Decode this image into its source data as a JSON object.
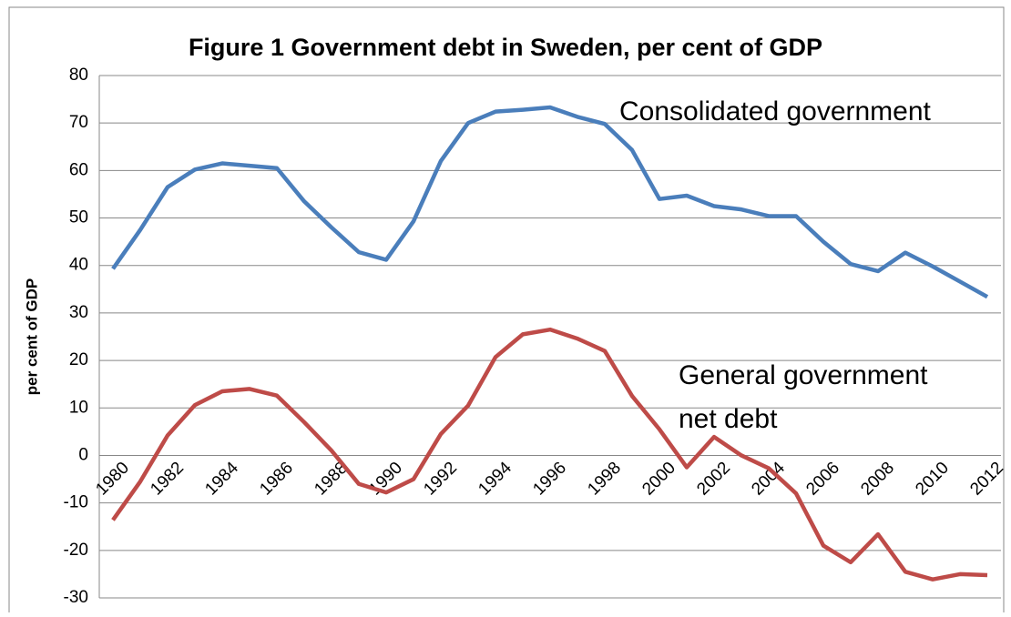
{
  "chart_data": {
    "type": "line",
    "title": "Figure 1 Government debt in Sweden, per cent of GDP",
    "y_label": "per cent of GDP",
    "annotations": [
      "Consolidated government",
      "General government",
      "net debt"
    ],
    "categories": [
      "1980",
      null,
      "1982",
      null,
      "1984",
      null,
      "1986",
      null,
      "1988",
      null,
      "1990",
      null,
      "1992",
      null,
      "1994",
      null,
      "1996",
      null,
      "1998",
      null,
      "2000",
      null,
      "2002",
      null,
      "2004",
      null,
      "2006",
      null,
      "2008",
      null,
      "2010",
      null,
      "2012"
    ],
    "series": [
      {
        "color": "#4a7ebb",
        "values": [
          39.3,
          47.5,
          56.5,
          60.2,
          61.5,
          61.0,
          60.5,
          53.5,
          48.0,
          42.8,
          41.2,
          49.3,
          62.0,
          70.0,
          72.4,
          72.8,
          73.3,
          71.3,
          69.8,
          64.3,
          54.0,
          54.7,
          52.5,
          51.8,
          50.4,
          50.4,
          45.0,
          40.3,
          38.8,
          42.7,
          39.8,
          36.6,
          33.4
        ]
      },
      {
        "color": "#be4b48",
        "values": [
          -13.6,
          -5.5,
          4.2,
          10.6,
          13.5,
          14.0,
          12.6,
          7.0,
          1.0,
          -6.0,
          -7.8,
          -5.0,
          4.5,
          10.5,
          20.7,
          25.5,
          26.5,
          24.6,
          22.0,
          12.5,
          5.5,
          -2.5,
          3.9,
          0.0,
          -2.7,
          -8.0,
          -19.0,
          -22.5,
          -16.6,
          -24.5,
          -26.1,
          -25.0,
          -25.2
        ]
      }
    ],
    "ylim": [
      -30,
      80
    ],
    "yticks": [
      -30,
      -20,
      -10,
      0,
      10,
      20,
      30,
      40,
      50,
      60,
      70,
      80
    ],
    "grid": true
  }
}
